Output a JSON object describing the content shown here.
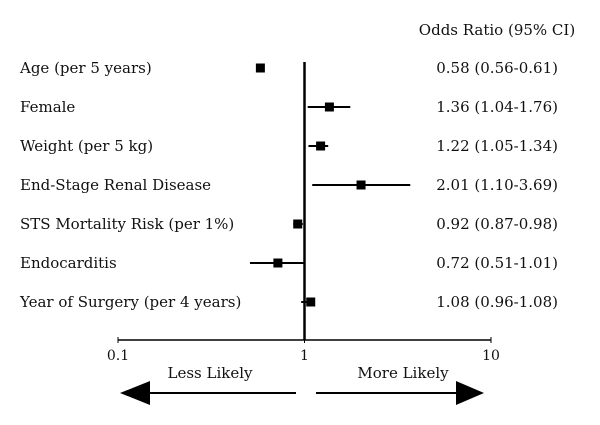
{
  "chart_data": {
    "type": "forest",
    "header": "Odds Ratio (95% CI)",
    "x_scale": "log",
    "xlim": [
      0.1,
      10
    ],
    "reference_line": 1,
    "xticks": [
      {
        "value": 0.1,
        "label": "0.1"
      },
      {
        "value": 1,
        "label": "1"
      },
      {
        "value": 10,
        "label": "10"
      }
    ],
    "rows": [
      {
        "label": "Age (per 5 years)",
        "or": 0.58,
        "ci_low": 0.56,
        "ci_high": 0.61,
        "or_text": "0.58 (0.56-0.61)"
      },
      {
        "label": "Female",
        "or": 1.36,
        "ci_low": 1.04,
        "ci_high": 1.76,
        "or_text": "1.36 (1.04-1.76)"
      },
      {
        "label": "Weight (per 5 kg)",
        "or": 1.22,
        "ci_low": 1.05,
        "ci_high": 1.34,
        "or_text": "1.22 (1.05-1.34)"
      },
      {
        "label": "End-Stage Renal Disease",
        "or": 2.01,
        "ci_low": 1.1,
        "ci_high": 3.69,
        "or_text": "2.01 (1.10-3.69)"
      },
      {
        "label": "STS Mortality Risk (per 1%)",
        "or": 0.92,
        "ci_low": 0.87,
        "ci_high": 0.98,
        "or_text": "0.92 (0.87-0.98)"
      },
      {
        "label": "Endocarditis",
        "or": 0.72,
        "ci_low": 0.51,
        "ci_high": 1.01,
        "or_text": "0.72 (0.51-1.01)"
      },
      {
        "label": "Year of Surgery (per 4 years)",
        "or": 1.08,
        "ci_low": 0.96,
        "ci_high": 1.08,
        "or_text": "1.08 (0.96-1.08)"
      }
    ],
    "direction_left": "Less Likely",
    "direction_right": "More Likely",
    "color": "#000000"
  }
}
